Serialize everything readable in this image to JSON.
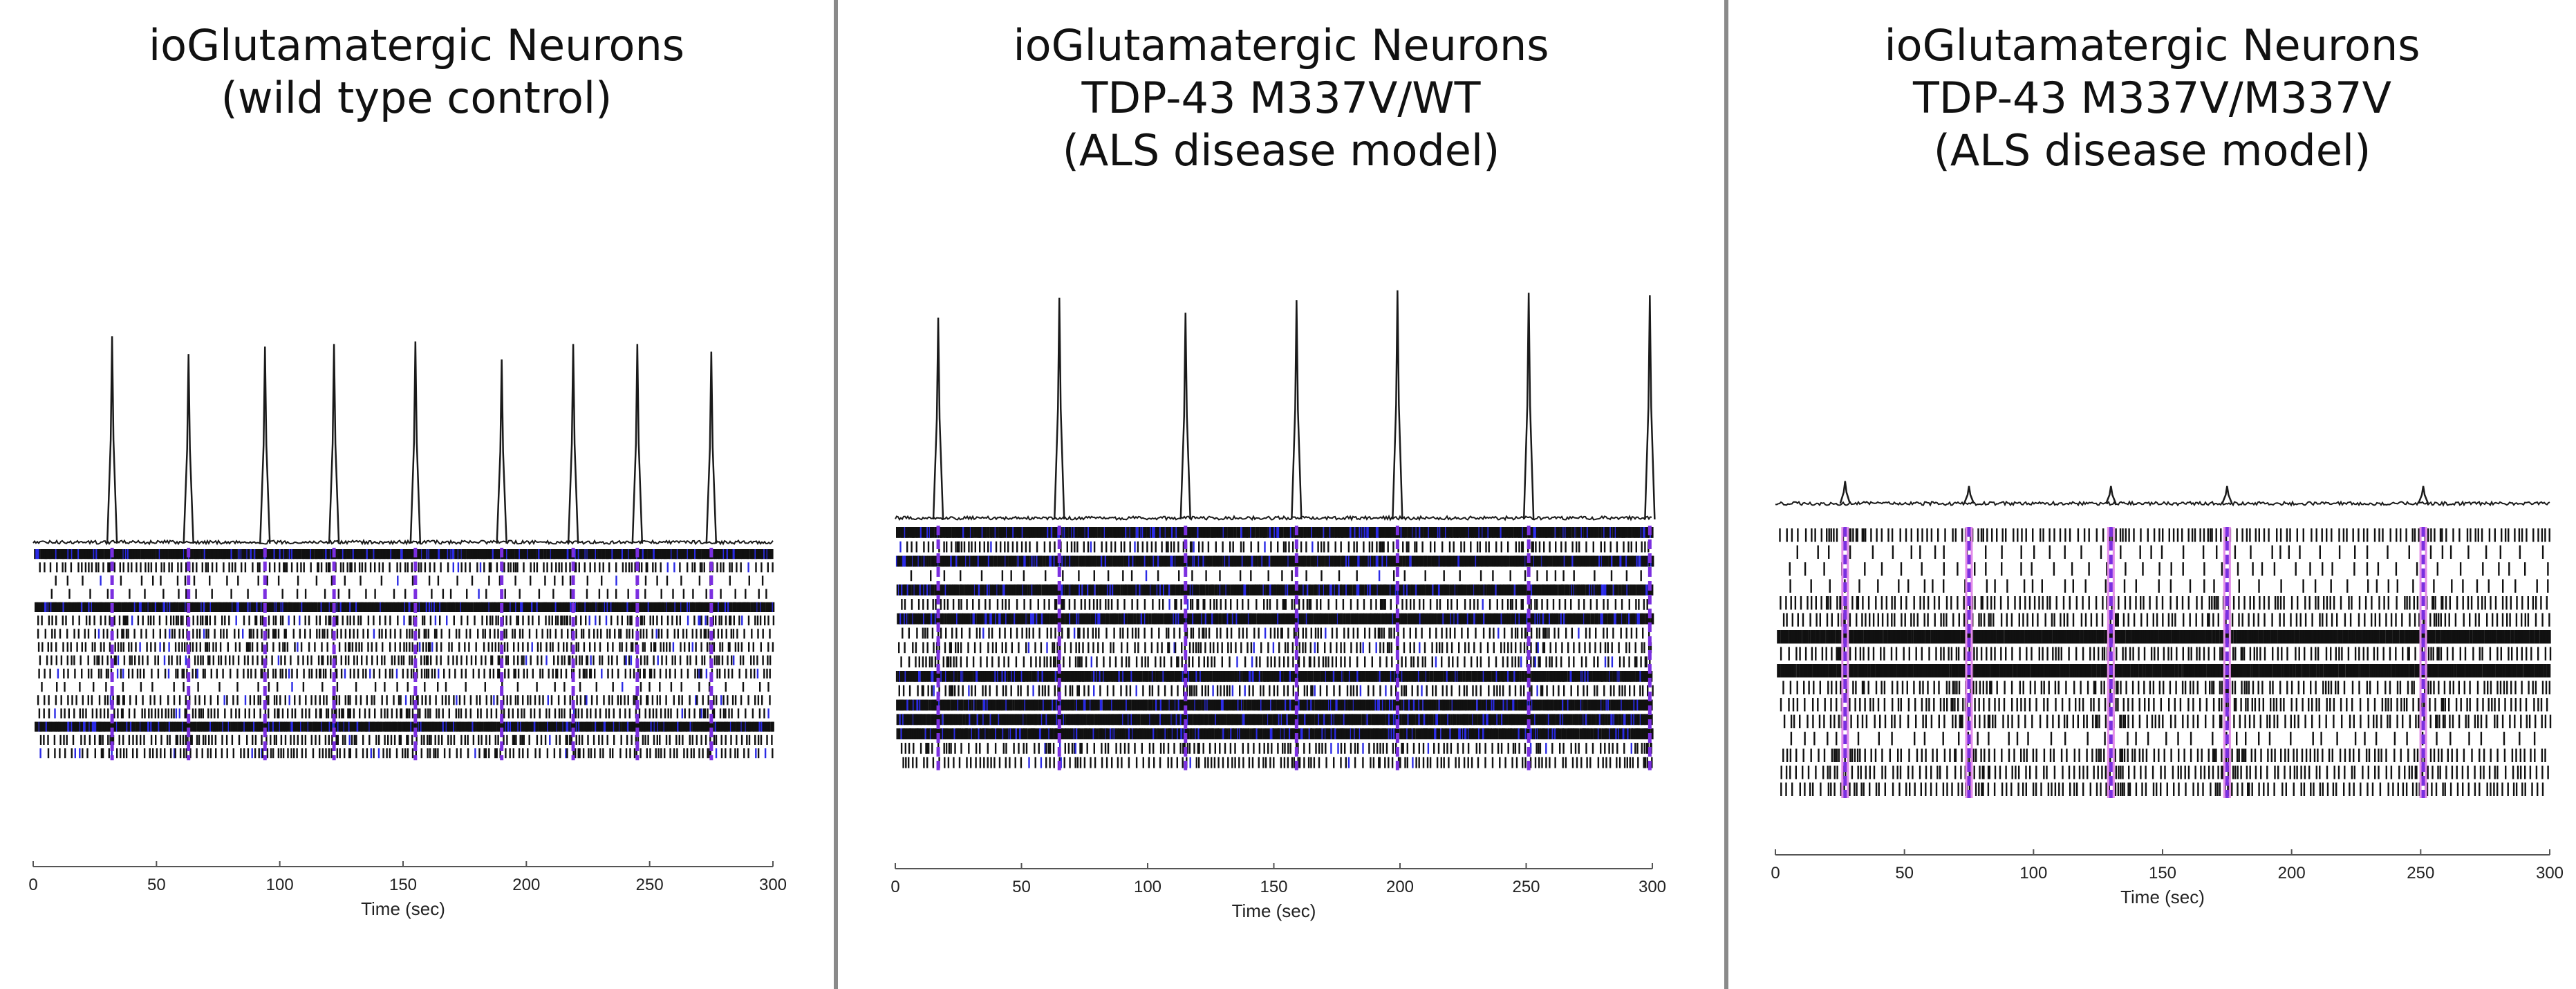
{
  "panels": [
    {
      "title_lines": [
        "ioGlutamatergic Neurons",
        "(wild type control)"
      ]
    },
    {
      "title_lines": [
        "ioGlutamatergic Neurons",
        "TDP-43 M337V/WT",
        "(ALS disease model)"
      ]
    },
    {
      "title_lines": [
        "ioGlutamatergic Neurons",
        "TDP-43 M337V/M337V",
        "(ALS disease model)"
      ]
    }
  ],
  "chart_data": [
    {
      "type": "raster",
      "title": "ioGlutamatergic Neurons (wild type control)",
      "xlabel": "Time (sec)",
      "xlim": [
        0,
        300
      ],
      "xticks": [
        0,
        50,
        100,
        150,
        200,
        250,
        300
      ],
      "burst_times": [
        32,
        63,
        94,
        122,
        155,
        190,
        219,
        245,
        275
      ],
      "burst_peak_heights": [
        0.81,
        0.74,
        0.77,
        0.78,
        0.79,
        0.72,
        0.78,
        0.78,
        0.75
      ],
      "electrode_rows": 16,
      "dense_rows": [
        0,
        4,
        13
      ],
      "sparse_rows": [
        2,
        3,
        10
      ],
      "marker_color": "#7b2fe0"
    },
    {
      "type": "raster",
      "title": "ioGlutamatergic Neurons TDP-43 M337V/WT (ALS disease model)",
      "xlabel": "Time (sec)",
      "xlim": [
        0,
        300
      ],
      "xticks": [
        0,
        50,
        100,
        150,
        200,
        250,
        300
      ],
      "burst_times": [
        17,
        65,
        115,
        159,
        199,
        251,
        299
      ],
      "burst_peak_heights": [
        0.81,
        0.89,
        0.83,
        0.88,
        0.92,
        0.91,
        0.9
      ],
      "electrode_rows": 17,
      "dense_rows": [
        0,
        2,
        4,
        6,
        10,
        12,
        13,
        14
      ],
      "sparse_rows": [
        3
      ],
      "marker_color": "#7b2fe0"
    },
    {
      "type": "raster",
      "title": "ioGlutamatergic Neurons TDP-43 M337V/M337V (ALS disease model)",
      "xlabel": "Time (sec)",
      "xlim": [
        0,
        300
      ],
      "xticks": [
        0,
        50,
        100,
        150,
        200,
        250,
        300
      ],
      "burst_times": [
        27,
        75,
        130,
        175,
        251
      ],
      "burst_peak_heights": [
        0.09,
        0.07,
        0.07,
        0.07,
        0.07
      ],
      "electrode_rows": 16,
      "dense_rows": [
        6,
        8
      ],
      "sparse_rows": [
        1,
        2,
        3,
        12
      ],
      "marker_color": "#7b2fe0"
    }
  ]
}
